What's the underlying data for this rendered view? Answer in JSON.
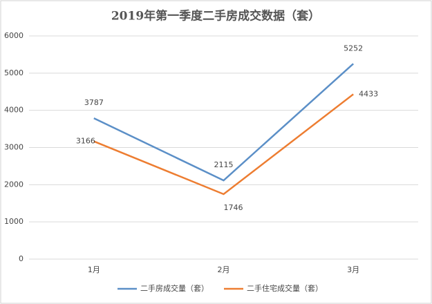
{
  "chart_data": {
    "type": "line",
    "title": "2019年第一季度二手房成交数据（套）",
    "categories": [
      "1月",
      "2月",
      "3月"
    ],
    "series": [
      {
        "name": "二手房成交量（套）",
        "color": "#5b8fc7",
        "values": [
          3787,
          2115,
          5252
        ]
      },
      {
        "name": "二手住宅成交量（套）",
        "color": "#ed7d31",
        "values": [
          3166,
          1746,
          4433
        ]
      }
    ],
    "ylim": [
      0,
      6000
    ],
    "yticks": [
      0,
      1000,
      2000,
      3000,
      4000,
      5000,
      6000
    ],
    "grid": true,
    "legend": "bottom"
  }
}
